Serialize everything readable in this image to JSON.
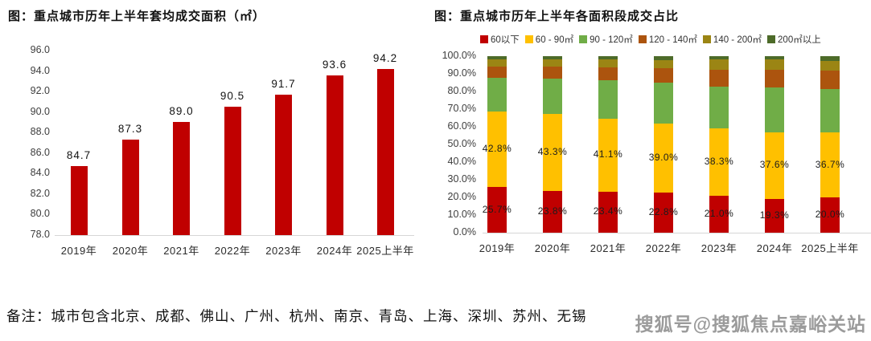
{
  "note": "备注：城市包含北京、成都、佛山、广州、杭州、南京、青岛、上海、深圳、苏州、无锡",
  "watermark": "搜狐号@搜狐焦点嘉峪关站",
  "chart_data": [
    {
      "type": "bar",
      "title": "图：重点城市历年上半年套均成交面积（㎡）",
      "categories": [
        "2019年",
        "2020年",
        "2021年",
        "2022年",
        "2023年",
        "2024年",
        "2025上半年"
      ],
      "values": [
        84.7,
        87.3,
        89.0,
        90.5,
        91.7,
        93.6,
        94.2
      ],
      "labels": [
        "84.7",
        "87.3",
        "89.0",
        "90.5",
        "91.7",
        "93.6",
        "94.2"
      ],
      "bar_color": "#C00000",
      "ylim": [
        78.0,
        96.0
      ],
      "ytick_step": 2.0,
      "yticks": [
        "96.0",
        "94.0",
        "92.0",
        "90.0",
        "88.0",
        "86.0",
        "84.0",
        "82.0",
        "80.0",
        "78.0"
      ],
      "grid": false,
      "legend": "none"
    },
    {
      "type": "stacked-bar",
      "title": "图：重点城市历年上半年各面积段成交占比",
      "categories": [
        "2019年",
        "2020年",
        "2021年",
        "2022年",
        "2023年",
        "2024年",
        "2025上半年"
      ],
      "series": [
        {
          "name": "60以下",
          "color": "#C00000",
          "values": [
            25.7,
            23.8,
            23.4,
            22.8,
            21.0,
            19.3,
            20.0
          ],
          "labels": [
            "25.7%",
            "23.8%",
            "23.4%",
            "22.8%",
            "21.0%",
            "19.3%",
            "20.0%"
          ],
          "show_labels": true
        },
        {
          "name": "60 - 90㎡",
          "color": "#FFC000",
          "values": [
            42.8,
            43.3,
            41.1,
            39.0,
            38.3,
            37.6,
            36.7
          ],
          "labels": [
            "42.8%",
            "43.3%",
            "41.1%",
            "39.0%",
            "38.3%",
            "37.6%",
            "36.7%"
          ],
          "show_labels": true
        },
        {
          "name": "90 - 120㎡",
          "color": "#70AD47",
          "values": [
            19.2,
            20.1,
            22.0,
            23.1,
            23.5,
            25.3,
            24.5
          ],
          "show_labels": false
        },
        {
          "name": "120 - 140㎡",
          "color": "#AC540E",
          "values": [
            6.3,
            7.0,
            7.3,
            8.1,
            9.7,
            10.0,
            10.8
          ],
          "show_labels": false
        },
        {
          "name": "140 - 200㎡",
          "color": "#9B8514",
          "values": [
            4.0,
            4.2,
            4.2,
            4.8,
            5.5,
            6.0,
            5.5
          ],
          "show_labels": false
        },
        {
          "name": "200㎡以上",
          "color": "#4D6B29",
          "values": [
            2.0,
            1.6,
            2.0,
            2.2,
            2.0,
            1.8,
            2.5
          ],
          "show_labels": false
        }
      ],
      "ylim": [
        0,
        100
      ],
      "yticks": [
        "100.0%",
        "90.0%",
        "80.0%",
        "70.0%",
        "60.0%",
        "50.0%",
        "40.0%",
        "30.0%",
        "20.0%",
        "10.0%",
        "0.0%"
      ],
      "grid": false,
      "legend_position": "top"
    }
  ]
}
